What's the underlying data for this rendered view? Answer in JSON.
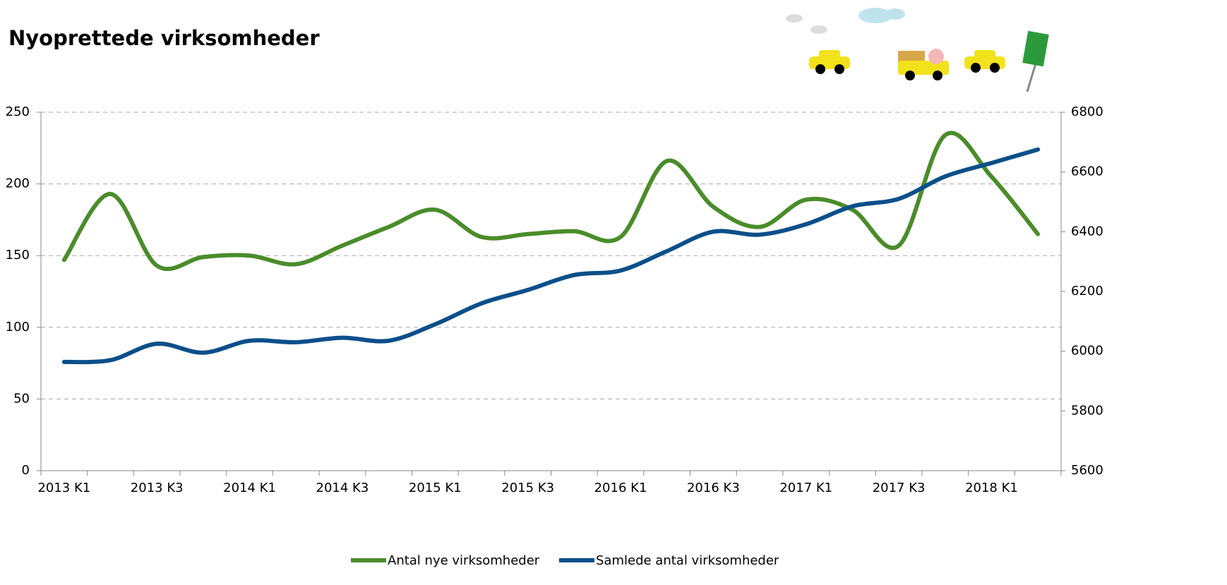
{
  "chart_data": {
    "type": "line",
    "title": "Nyoprettede virksomheder",
    "categories": [
      "2013 K1",
      null,
      "2013 K3",
      null,
      "2014 K1",
      null,
      "2014 K3",
      null,
      "2015 K1",
      null,
      "2015 K3",
      null,
      "2016 K1",
      null,
      "2016 K3",
      null,
      "2017 K1",
      null,
      "2017 K3",
      null,
      "2018 K1",
      null
    ],
    "series": [
      {
        "name": "Antal nye virksomheder",
        "color": "#4a8c2a",
        "values": [
          147,
          193,
          143,
          149,
          150,
          144,
          157,
          170,
          182,
          163,
          165,
          167,
          163,
          216,
          184,
          170,
          189,
          182,
          157,
          234,
          205,
          165
        ]
      },
      {
        "name": "Samlede antal virksomheder",
        "color": "#0b4f8a",
        "axis": "y2",
        "values": [
          5964,
          5970,
          6025,
          5995,
          6035,
          6030,
          6045,
          6035,
          6090,
          6160,
          6205,
          6255,
          6270,
          6335,
          6400,
          6390,
          6425,
          6485,
          6510,
          6585,
          6630,
          6675
        ]
      }
    ],
    "ylim": [
      0,
      250
    ],
    "yticks": [
      0,
      50,
      100,
      150,
      200,
      250
    ],
    "y2lim": [
      5600,
      6800
    ],
    "y2ticks": [
      5600,
      5800,
      6000,
      6200,
      6400,
      6600,
      6800
    ],
    "grid": true,
    "legend": "bottom"
  }
}
